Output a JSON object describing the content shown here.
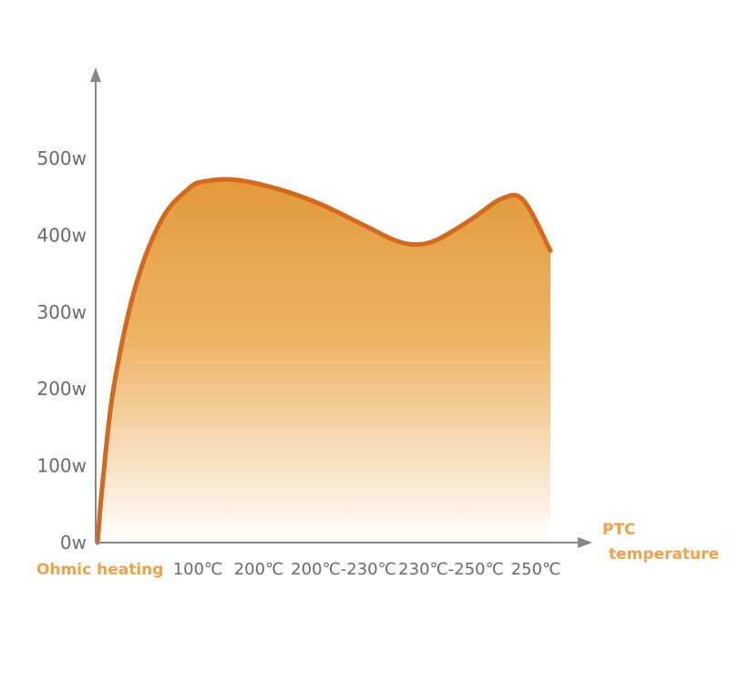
{
  "chart_data": {
    "type": "area",
    "title": "",
    "xlabel": "PTC temperature",
    "xlabel_lines": [
      "PTC",
      "temperature"
    ],
    "origin_label": "Ohmic heating",
    "ylabel": "",
    "y_unit": "w",
    "ylim": [
      0,
      500
    ],
    "y_ticks": [
      "0w",
      "100w",
      "200w",
      "300w",
      "400w",
      "500w"
    ],
    "categories": [
      "100℃",
      "200℃",
      "200℃-230℃",
      "230℃-250℃",
      "250℃"
    ],
    "series": [
      {
        "x": [
          0,
          0.05,
          0.15,
          0.35,
          0.6,
          0.85,
          1.0,
          1.3,
          1.7,
          2.1,
          2.5,
          2.8,
          3.0,
          3.2,
          3.5,
          3.8,
          4.0,
          4.25
        ],
        "values": [
          0,
          80,
          200,
          330,
          420,
          460,
          470,
          472,
          460,
          440,
          413,
          393,
          388,
          395,
          420,
          448,
          445,
          380
        ]
      }
    ],
    "grid": false,
    "legend": "none",
    "colors": {
      "line": "#d2691e",
      "fill_top": "#e39a3a",
      "fill_bottom": "#ffffff",
      "axis": "#888888",
      "accent_text": "#f0a24a"
    }
  }
}
